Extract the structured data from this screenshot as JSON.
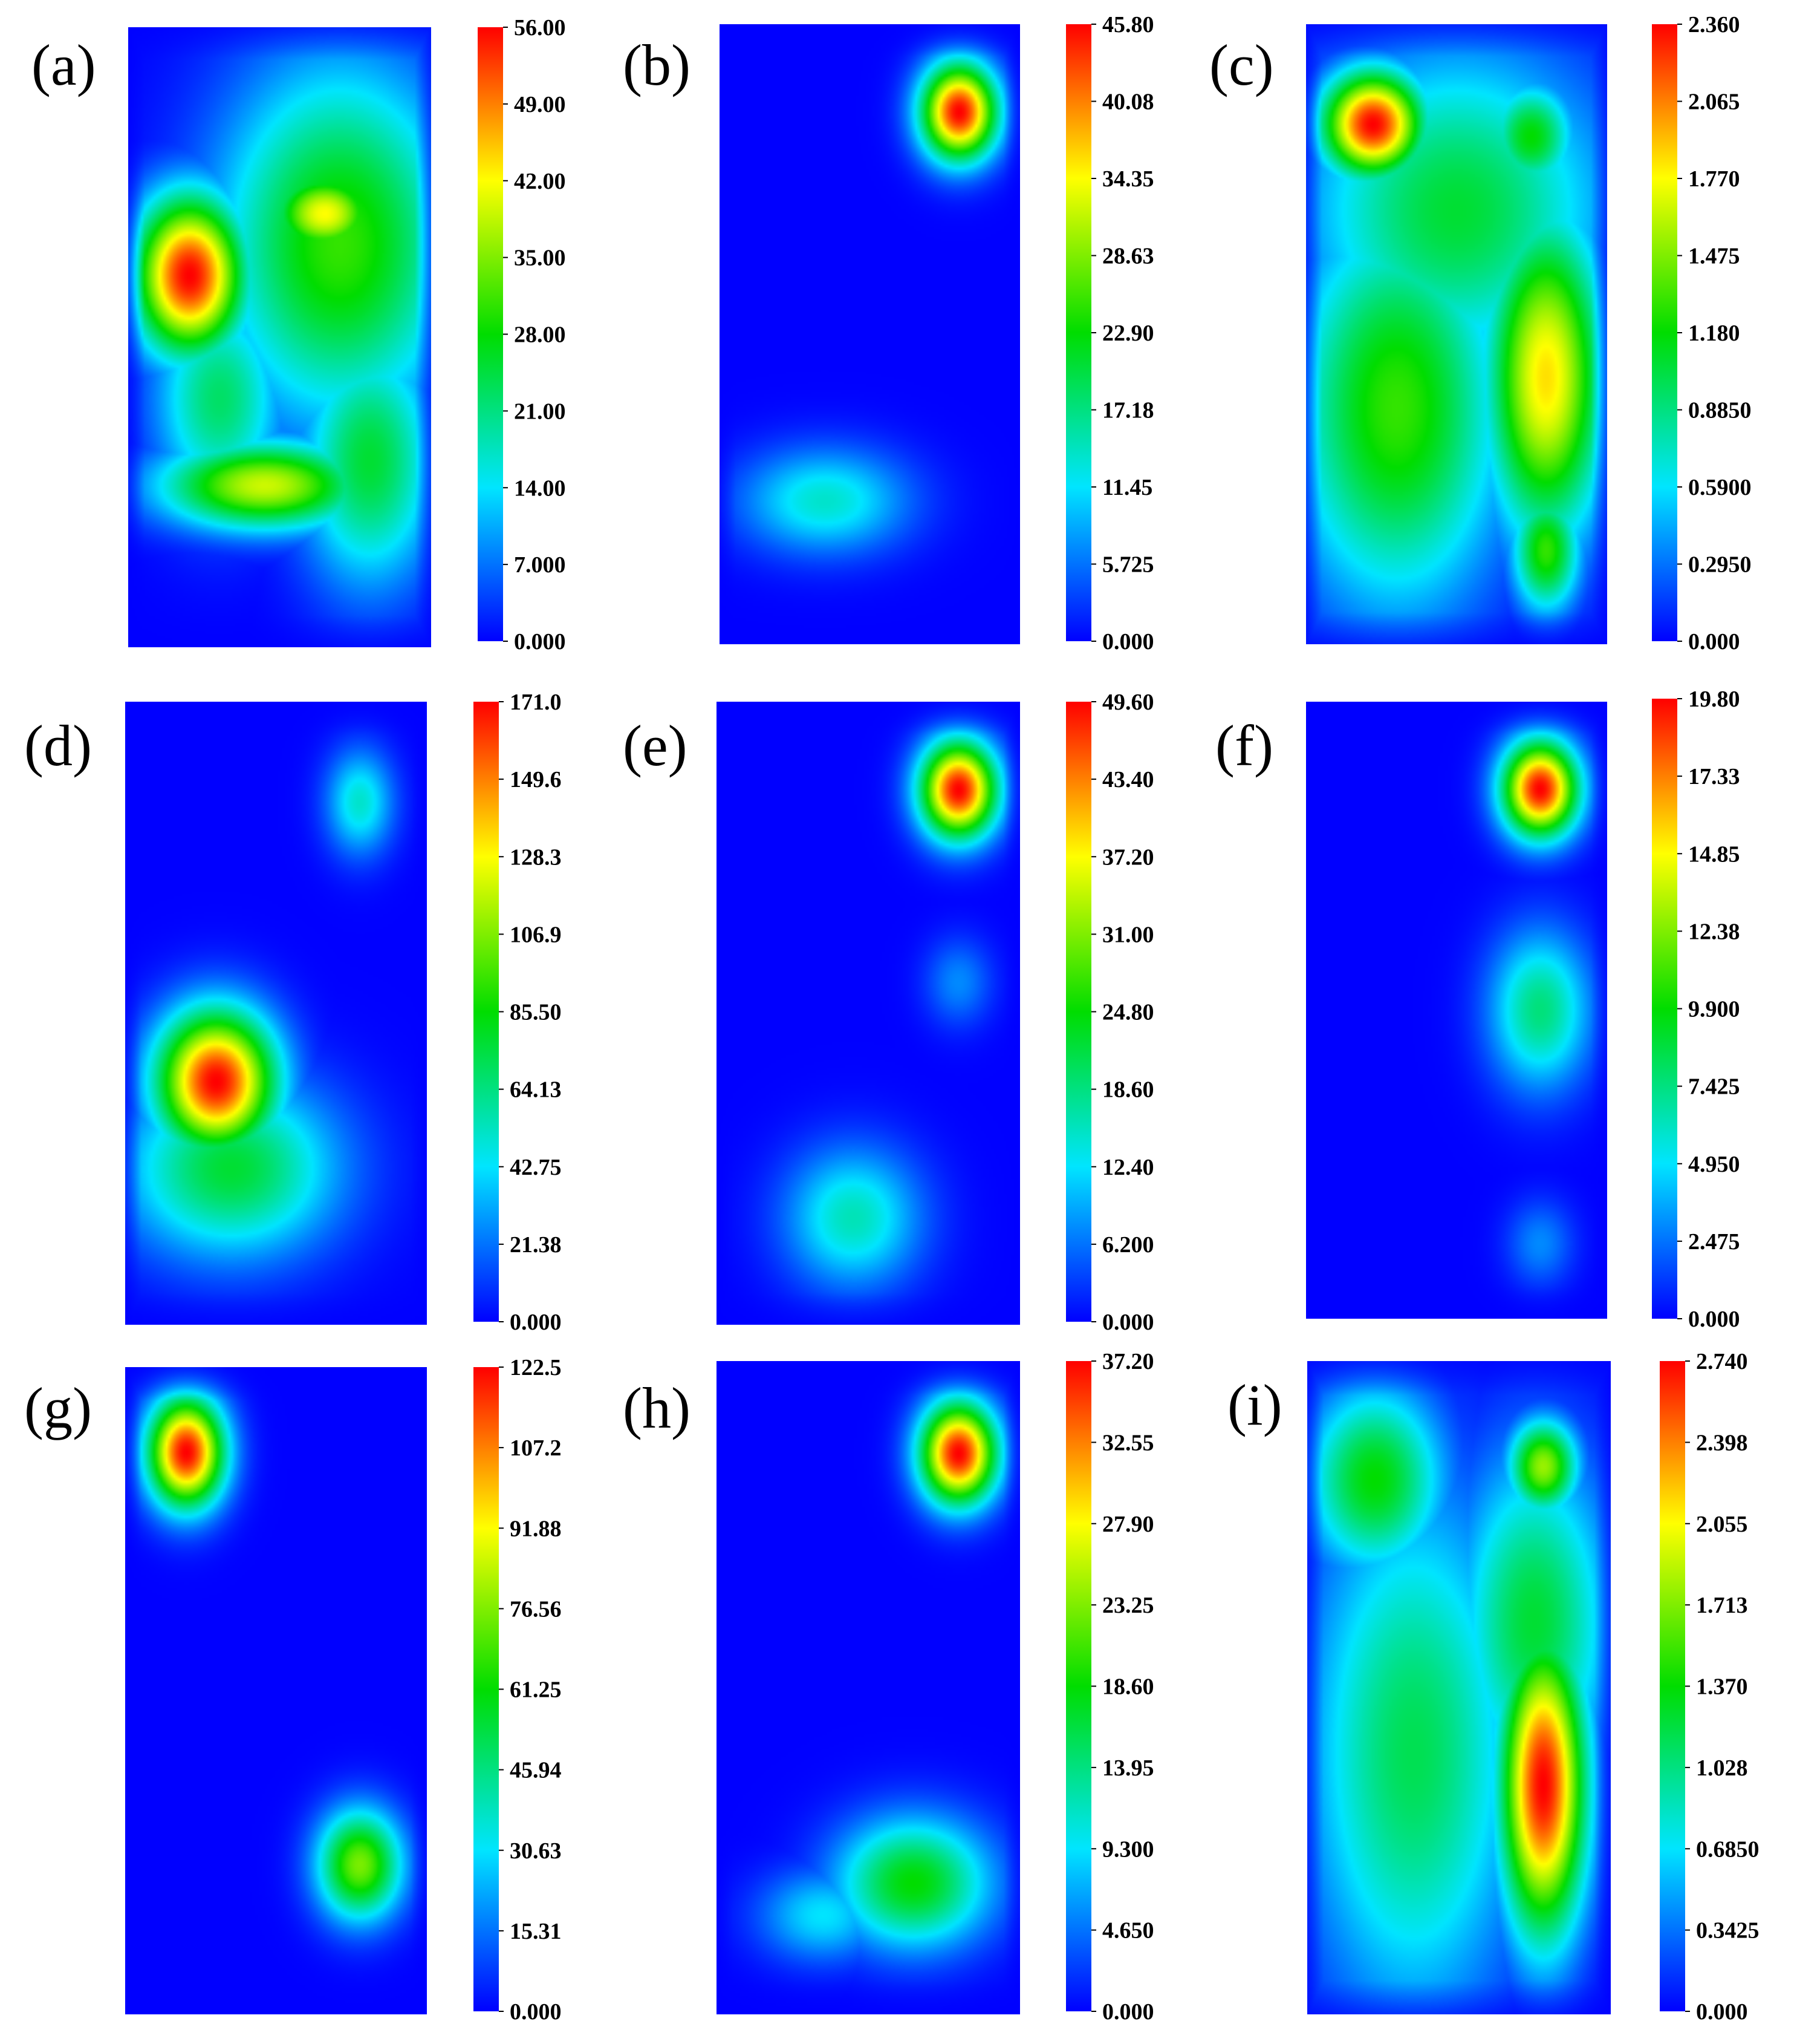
{
  "figure": {
    "colormap": [
      "#0000ff",
      "#00e5ff",
      "#00dd00",
      "#ffff00",
      "#ff0000"
    ],
    "background": "#ffffff"
  },
  "chart_data": [
    {
      "type": "heatmap",
      "label": "(a)",
      "colorbar_ticks": [
        "0.000",
        "7.000",
        "14.00",
        "21.00",
        "28.00",
        "35.00",
        "42.00",
        "49.00",
        "56.00"
      ],
      "range": [
        0,
        56
      ],
      "hotspots": [
        {
          "x": 0.2,
          "y": 0.4,
          "sx": 0.13,
          "sy": 0.09,
          "value": 1.0
        },
        {
          "x": 0.45,
          "y": 0.74,
          "sx": 0.24,
          "sy": 0.05,
          "value": 0.7
        },
        {
          "x": 0.65,
          "y": 0.3,
          "sx": 0.13,
          "sy": 0.05,
          "value": 0.75
        },
        {
          "x": 0.7,
          "y": 0.35,
          "sx": 0.28,
          "sy": 0.2,
          "value": 0.55
        },
        {
          "x": 0.8,
          "y": 0.7,
          "sx": 0.16,
          "sy": 0.14,
          "value": 0.45
        },
        {
          "x": 0.3,
          "y": 0.6,
          "sx": 0.15,
          "sy": 0.12,
          "value": 0.4
        }
      ]
    },
    {
      "type": "heatmap",
      "label": "(b)",
      "colorbar_ticks": [
        "0.000",
        "5.725",
        "11.45",
        "17.18",
        "22.90",
        "28.63",
        "34.35",
        "40.08",
        "45.80"
      ],
      "range": [
        0,
        45.8
      ],
      "hotspots": [
        {
          "x": 0.8,
          "y": 0.14,
          "sx": 0.09,
          "sy": 0.055,
          "value": 1.0
        },
        {
          "x": 0.35,
          "y": 0.77,
          "sx": 0.2,
          "sy": 0.06,
          "value": 0.3
        }
      ]
    },
    {
      "type": "heatmap",
      "label": "(c)",
      "colorbar_ticks": [
        "0.000",
        "0.2950",
        "0.5900",
        "0.8850",
        "1.180",
        "1.475",
        "1.770",
        "2.065",
        "2.360"
      ],
      "range": [
        0,
        2.36
      ],
      "hotspots": [
        {
          "x": 0.22,
          "y": 0.16,
          "sx": 0.12,
          "sy": 0.06,
          "value": 1.0
        },
        {
          "x": 0.8,
          "y": 0.57,
          "sx": 0.14,
          "sy": 0.18,
          "value": 0.78
        },
        {
          "x": 0.8,
          "y": 0.85,
          "sx": 0.08,
          "sy": 0.07,
          "value": 0.55
        },
        {
          "x": 0.3,
          "y": 0.62,
          "sx": 0.25,
          "sy": 0.22,
          "value": 0.55
        },
        {
          "x": 0.75,
          "y": 0.18,
          "sx": 0.1,
          "sy": 0.06,
          "value": 0.5
        },
        {
          "x": 0.5,
          "y": 0.3,
          "sx": 0.35,
          "sy": 0.18,
          "value": 0.45
        }
      ]
    },
    {
      "type": "heatmap",
      "label": "(d)",
      "colorbar_ticks": [
        "0.000",
        "21.38",
        "42.75",
        "64.13",
        "85.50",
        "106.9",
        "128.3",
        "149.6",
        "171.0"
      ],
      "range": [
        0,
        171
      ],
      "hotspots": [
        {
          "x": 0.3,
          "y": 0.61,
          "sx": 0.14,
          "sy": 0.08,
          "value": 1.0
        },
        {
          "x": 0.35,
          "y": 0.75,
          "sx": 0.25,
          "sy": 0.1,
          "value": 0.45
        },
        {
          "x": 0.78,
          "y": 0.16,
          "sx": 0.08,
          "sy": 0.06,
          "value": 0.3
        }
      ]
    },
    {
      "type": "heatmap",
      "label": "(e)",
      "colorbar_ticks": [
        "0.000",
        "6.200",
        "12.40",
        "18.60",
        "24.80",
        "31.00",
        "37.20",
        "43.40",
        "49.60"
      ],
      "range": [
        0,
        49.6
      ],
      "hotspots": [
        {
          "x": 0.8,
          "y": 0.14,
          "sx": 0.09,
          "sy": 0.055,
          "value": 1.0
        },
        {
          "x": 0.45,
          "y": 0.83,
          "sx": 0.16,
          "sy": 0.08,
          "value": 0.32
        },
        {
          "x": 0.8,
          "y": 0.45,
          "sx": 0.08,
          "sy": 0.05,
          "value": 0.15
        }
      ]
    },
    {
      "type": "heatmap",
      "label": "(f)",
      "colorbar_ticks": [
        "0.000",
        "2.475",
        "4.950",
        "7.425",
        "9.900",
        "12.38",
        "14.85",
        "17.33",
        "19.80"
      ],
      "range": [
        0,
        19.8
      ],
      "hotspots": [
        {
          "x": 0.78,
          "y": 0.14,
          "sx": 0.09,
          "sy": 0.055,
          "value": 1.0
        },
        {
          "x": 0.78,
          "y": 0.5,
          "sx": 0.12,
          "sy": 0.09,
          "value": 0.38
        },
        {
          "x": 0.78,
          "y": 0.88,
          "sx": 0.08,
          "sy": 0.05,
          "value": 0.15
        }
      ]
    },
    {
      "type": "heatmap",
      "label": "(g)",
      "colorbar_ticks": [
        "0.000",
        "15.31",
        "30.63",
        "45.94",
        "61.25",
        "76.56",
        "91.88",
        "107.2",
        "122.5"
      ],
      "range": [
        0,
        122.5
      ],
      "hotspots": [
        {
          "x": 0.2,
          "y": 0.13,
          "sx": 0.09,
          "sy": 0.06,
          "value": 1.0
        },
        {
          "x": 0.78,
          "y": 0.77,
          "sx": 0.1,
          "sy": 0.06,
          "value": 0.62
        }
      ]
    },
    {
      "type": "heatmap",
      "label": "(h)",
      "colorbar_ticks": [
        "0.000",
        "4.650",
        "9.300",
        "13.95",
        "18.60",
        "23.25",
        "27.90",
        "32.55",
        "37.20"
      ],
      "range": [
        0,
        37.2
      ],
      "hotspots": [
        {
          "x": 0.8,
          "y": 0.14,
          "sx": 0.09,
          "sy": 0.055,
          "value": 1.0
        },
        {
          "x": 0.65,
          "y": 0.8,
          "sx": 0.18,
          "sy": 0.07,
          "value": 0.5
        },
        {
          "x": 0.35,
          "y": 0.85,
          "sx": 0.15,
          "sy": 0.05,
          "value": 0.25
        }
      ]
    },
    {
      "type": "heatmap",
      "label": "(i)",
      "colorbar_ticks": [
        "0.000",
        "0.3425",
        "0.6850",
        "1.028",
        "1.370",
        "1.713",
        "2.055",
        "2.398",
        "2.740"
      ],
      "range": [
        0,
        2.74
      ],
      "hotspots": [
        {
          "x": 0.78,
          "y": 0.65,
          "sx": 0.1,
          "sy": 0.16,
          "value": 1.0
        },
        {
          "x": 0.78,
          "y": 0.16,
          "sx": 0.08,
          "sy": 0.05,
          "value": 0.65
        },
        {
          "x": 0.22,
          "y": 0.18,
          "sx": 0.16,
          "sy": 0.1,
          "value": 0.5
        },
        {
          "x": 0.35,
          "y": 0.6,
          "sx": 0.25,
          "sy": 0.28,
          "value": 0.42
        },
        {
          "x": 0.75,
          "y": 0.4,
          "sx": 0.18,
          "sy": 0.18,
          "value": 0.45
        }
      ]
    }
  ]
}
